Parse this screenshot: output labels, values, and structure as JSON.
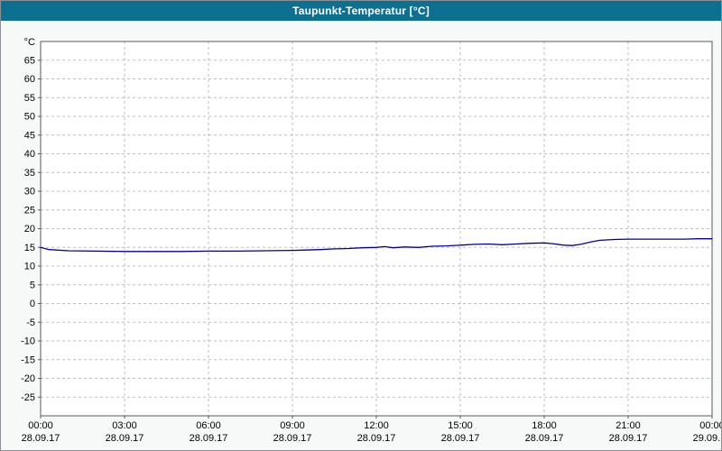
{
  "window": {
    "title": "Taupunkt-Temperatur [°C]"
  },
  "colors": {
    "title_bar": "#0d7091",
    "title_text": "#ffffff",
    "line": "#000099",
    "grid": "#bdbdbd",
    "axis": "#5a5a5a",
    "plot_bg": "#ffffff",
    "page_bg": "#f7f8f8",
    "tick_text": "#000000"
  },
  "chart_data": {
    "type": "line",
    "title": "Taupunkt-Temperatur [°C]",
    "xlabel": "",
    "ylabel": "°C",
    "ylim": [
      -30,
      70
    ],
    "y_tick_step": 5,
    "y_ticks": [
      65,
      60,
      55,
      50,
      45,
      40,
      35,
      30,
      25,
      20,
      15,
      10,
      5,
      0,
      -5,
      -10,
      -15,
      -20,
      -25
    ],
    "x_hours_range": [
      0,
      24
    ],
    "x_ticks": [
      {
        "hour": 0,
        "time": "00:00",
        "date": "28.09.17"
      },
      {
        "hour": 3,
        "time": "03:00",
        "date": "28.09.17"
      },
      {
        "hour": 6,
        "time": "06:00",
        "date": "28.09.17"
      },
      {
        "hour": 9,
        "time": "09:00",
        "date": "28.09.17"
      },
      {
        "hour": 12,
        "time": "12:00",
        "date": "28.09.17"
      },
      {
        "hour": 15,
        "time": "15:00",
        "date": "28.09.17"
      },
      {
        "hour": 18,
        "time": "18:00",
        "date": "28.09.17"
      },
      {
        "hour": 21,
        "time": "21:00",
        "date": "28.09.17"
      },
      {
        "hour": 24,
        "time": "00:00",
        "date": "29.09.17"
      }
    ],
    "grid": true,
    "legend": "none",
    "series": [
      {
        "name": "Taupunkt-Temperatur",
        "color": "#000099",
        "points": [
          [
            0,
            15.0
          ],
          [
            0.3,
            14.4
          ],
          [
            1,
            14.1
          ],
          [
            2,
            14.0
          ],
          [
            3,
            13.9
          ],
          [
            4,
            13.9
          ],
          [
            5,
            13.9
          ],
          [
            6,
            14.0
          ],
          [
            7,
            14.0
          ],
          [
            8,
            14.1
          ],
          [
            9,
            14.2
          ],
          [
            9.5,
            14.3
          ],
          [
            10,
            14.4
          ],
          [
            10.5,
            14.6
          ],
          [
            11,
            14.7
          ],
          [
            11.5,
            14.9
          ],
          [
            12,
            15.0
          ],
          [
            12.3,
            15.2
          ],
          [
            12.6,
            14.9
          ],
          [
            13,
            15.1
          ],
          [
            13.5,
            15.0
          ],
          [
            14,
            15.3
          ],
          [
            14.5,
            15.4
          ],
          [
            15,
            15.6
          ],
          [
            15.5,
            15.8
          ],
          [
            16,
            15.9
          ],
          [
            16.5,
            15.7
          ],
          [
            17,
            15.9
          ],
          [
            17.5,
            16.1
          ],
          [
            18,
            16.2
          ],
          [
            18.3,
            16.0
          ],
          [
            18.7,
            15.6
          ],
          [
            19,
            15.5
          ],
          [
            19.3,
            15.8
          ],
          [
            19.7,
            16.5
          ],
          [
            20,
            16.9
          ],
          [
            20.5,
            17.1
          ],
          [
            21,
            17.2
          ],
          [
            21.5,
            17.2
          ],
          [
            22,
            17.2
          ],
          [
            22.5,
            17.2
          ],
          [
            23,
            17.2
          ],
          [
            23.5,
            17.3
          ],
          [
            24,
            17.3
          ]
        ]
      }
    ]
  }
}
